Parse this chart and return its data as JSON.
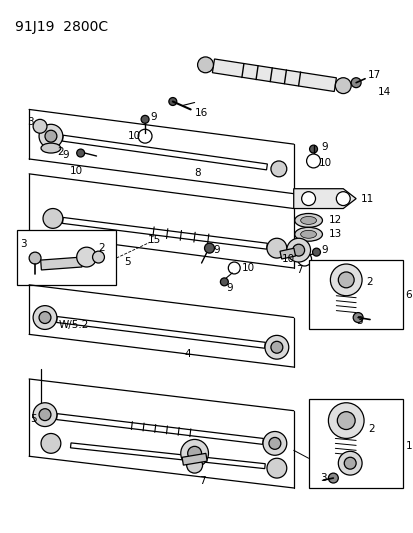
{
  "title": "91J19  2800C",
  "bg_color": "#ffffff",
  "line_color": "#000000",
  "title_fontsize": 10,
  "label_fontsize": 7.5,
  "fig_width": 4.14,
  "fig_height": 5.33,
  "dpi": 100
}
